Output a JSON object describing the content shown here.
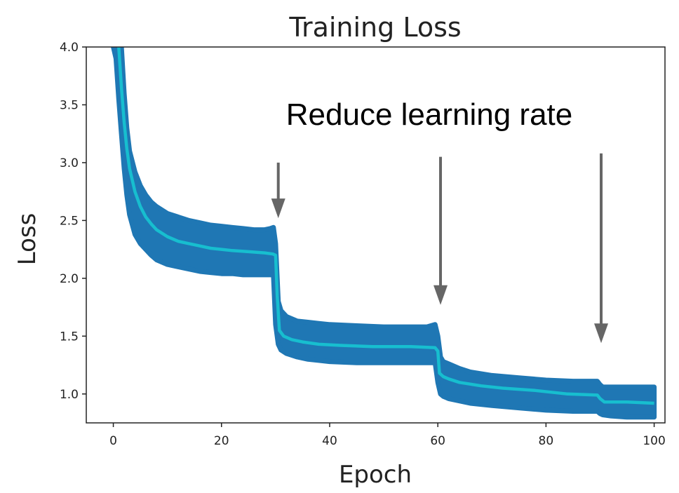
{
  "chart_data": {
    "type": "line",
    "title": "Training Loss",
    "xlabel": "Epoch",
    "ylabel": "Loss",
    "xlim": [
      -5,
      102
    ],
    "ylim": [
      0.75,
      4.0
    ],
    "xticks": [
      0,
      20,
      40,
      60,
      80,
      100
    ],
    "yticks": [
      1.0,
      1.5,
      2.0,
      2.5,
      3.0,
      3.5,
      4.0
    ],
    "xtick_labels": [
      "0",
      "20",
      "40",
      "60",
      "80",
      "100"
    ],
    "ytick_labels": [
      "1.0",
      "1.5",
      "2.0",
      "2.5",
      "3.0",
      "3.5",
      "4.0"
    ],
    "grid": false,
    "colors": {
      "band": "#1f77b4",
      "line": "#17becf",
      "arrow": "#666666"
    },
    "series": [
      {
        "role": "per-iteration loss band",
        "x": [
          0.0,
          0.5,
          1.0,
          1.5,
          2.0,
          2.5,
          3.0,
          4.0,
          5.0,
          6.0,
          7.0,
          8.0,
          10.0,
          12.0,
          14.0,
          16.0,
          18.0,
          20.0,
          22.0,
          24.0,
          26.0,
          28.0,
          29.0,
          29.6,
          30.0,
          30.5,
          31.0,
          32.0,
          34.0,
          36.0,
          38.0,
          40.0,
          45.0,
          50.0,
          55.0,
          58.0,
          59.5,
          60.0,
          60.5,
          61.0,
          62.0,
          64.0,
          66.0,
          70.0,
          75.0,
          80.0,
          85.0,
          89.5,
          90.0,
          90.5,
          92.0,
          95.0,
          98.0,
          100.0
        ],
        "upper": [
          4.0,
          4.0,
          4.0,
          4.0,
          3.6,
          3.3,
          3.1,
          2.92,
          2.8,
          2.72,
          2.66,
          2.62,
          2.56,
          2.53,
          2.5,
          2.48,
          2.46,
          2.45,
          2.44,
          2.43,
          2.42,
          2.42,
          2.43,
          2.44,
          2.3,
          1.8,
          1.72,
          1.67,
          1.63,
          1.62,
          1.61,
          1.6,
          1.59,
          1.58,
          1.58,
          1.58,
          1.6,
          1.5,
          1.32,
          1.28,
          1.26,
          1.22,
          1.19,
          1.16,
          1.14,
          1.12,
          1.11,
          1.11,
          1.08,
          1.06,
          1.06,
          1.06,
          1.06,
          1.06
        ],
        "lower": [
          4.0,
          3.9,
          3.55,
          3.25,
          2.95,
          2.72,
          2.55,
          2.38,
          2.3,
          2.25,
          2.2,
          2.16,
          2.12,
          2.1,
          2.08,
          2.06,
          2.05,
          2.04,
          2.04,
          2.03,
          2.03,
          2.03,
          2.03,
          2.03,
          1.6,
          1.43,
          1.38,
          1.35,
          1.32,
          1.3,
          1.29,
          1.28,
          1.27,
          1.27,
          1.27,
          1.27,
          1.27,
          1.1,
          1.0,
          0.98,
          0.96,
          0.94,
          0.92,
          0.9,
          0.88,
          0.86,
          0.85,
          0.85,
          0.83,
          0.82,
          0.81,
          0.8,
          0.8,
          0.8
        ]
      },
      {
        "role": "smoothed loss",
        "x": [
          1.0,
          1.5,
          2.0,
          2.5,
          3.0,
          4.0,
          5.0,
          6.0,
          7.0,
          8.0,
          10.0,
          12.0,
          14.0,
          16.0,
          18.0,
          20.0,
          22.0,
          25.0,
          28.0,
          29.5,
          30.0,
          30.3,
          30.7,
          31.5,
          33.0,
          35.0,
          38.0,
          42.0,
          48.0,
          55.0,
          59.5,
          60.0,
          60.3,
          61.0,
          62.0,
          64.0,
          68.0,
          72.0,
          78.0,
          84.0,
          89.5,
          90.0,
          90.8,
          95.0,
          100.0
        ],
        "y": [
          4.0,
          3.65,
          3.35,
          3.12,
          2.95,
          2.75,
          2.62,
          2.53,
          2.47,
          2.42,
          2.36,
          2.32,
          2.3,
          2.28,
          2.26,
          2.25,
          2.24,
          2.23,
          2.22,
          2.21,
          2.2,
          1.85,
          1.55,
          1.5,
          1.47,
          1.45,
          1.43,
          1.42,
          1.41,
          1.41,
          1.4,
          1.37,
          1.18,
          1.15,
          1.13,
          1.1,
          1.07,
          1.05,
          1.03,
          1.0,
          0.99,
          0.96,
          0.93,
          0.93,
          0.92
        ]
      }
    ],
    "annotations": [
      {
        "text": "Reduce learning rate"
      },
      {
        "text": "",
        "x": 30.5,
        "y_from": 3.0,
        "y_to": 2.52
      },
      {
        "text": "",
        "x": 60.5,
        "y_from": 3.05,
        "y_to": 1.77
      },
      {
        "text": "",
        "x": 90.2,
        "y_from": 3.08,
        "y_to": 1.44
      }
    ]
  }
}
